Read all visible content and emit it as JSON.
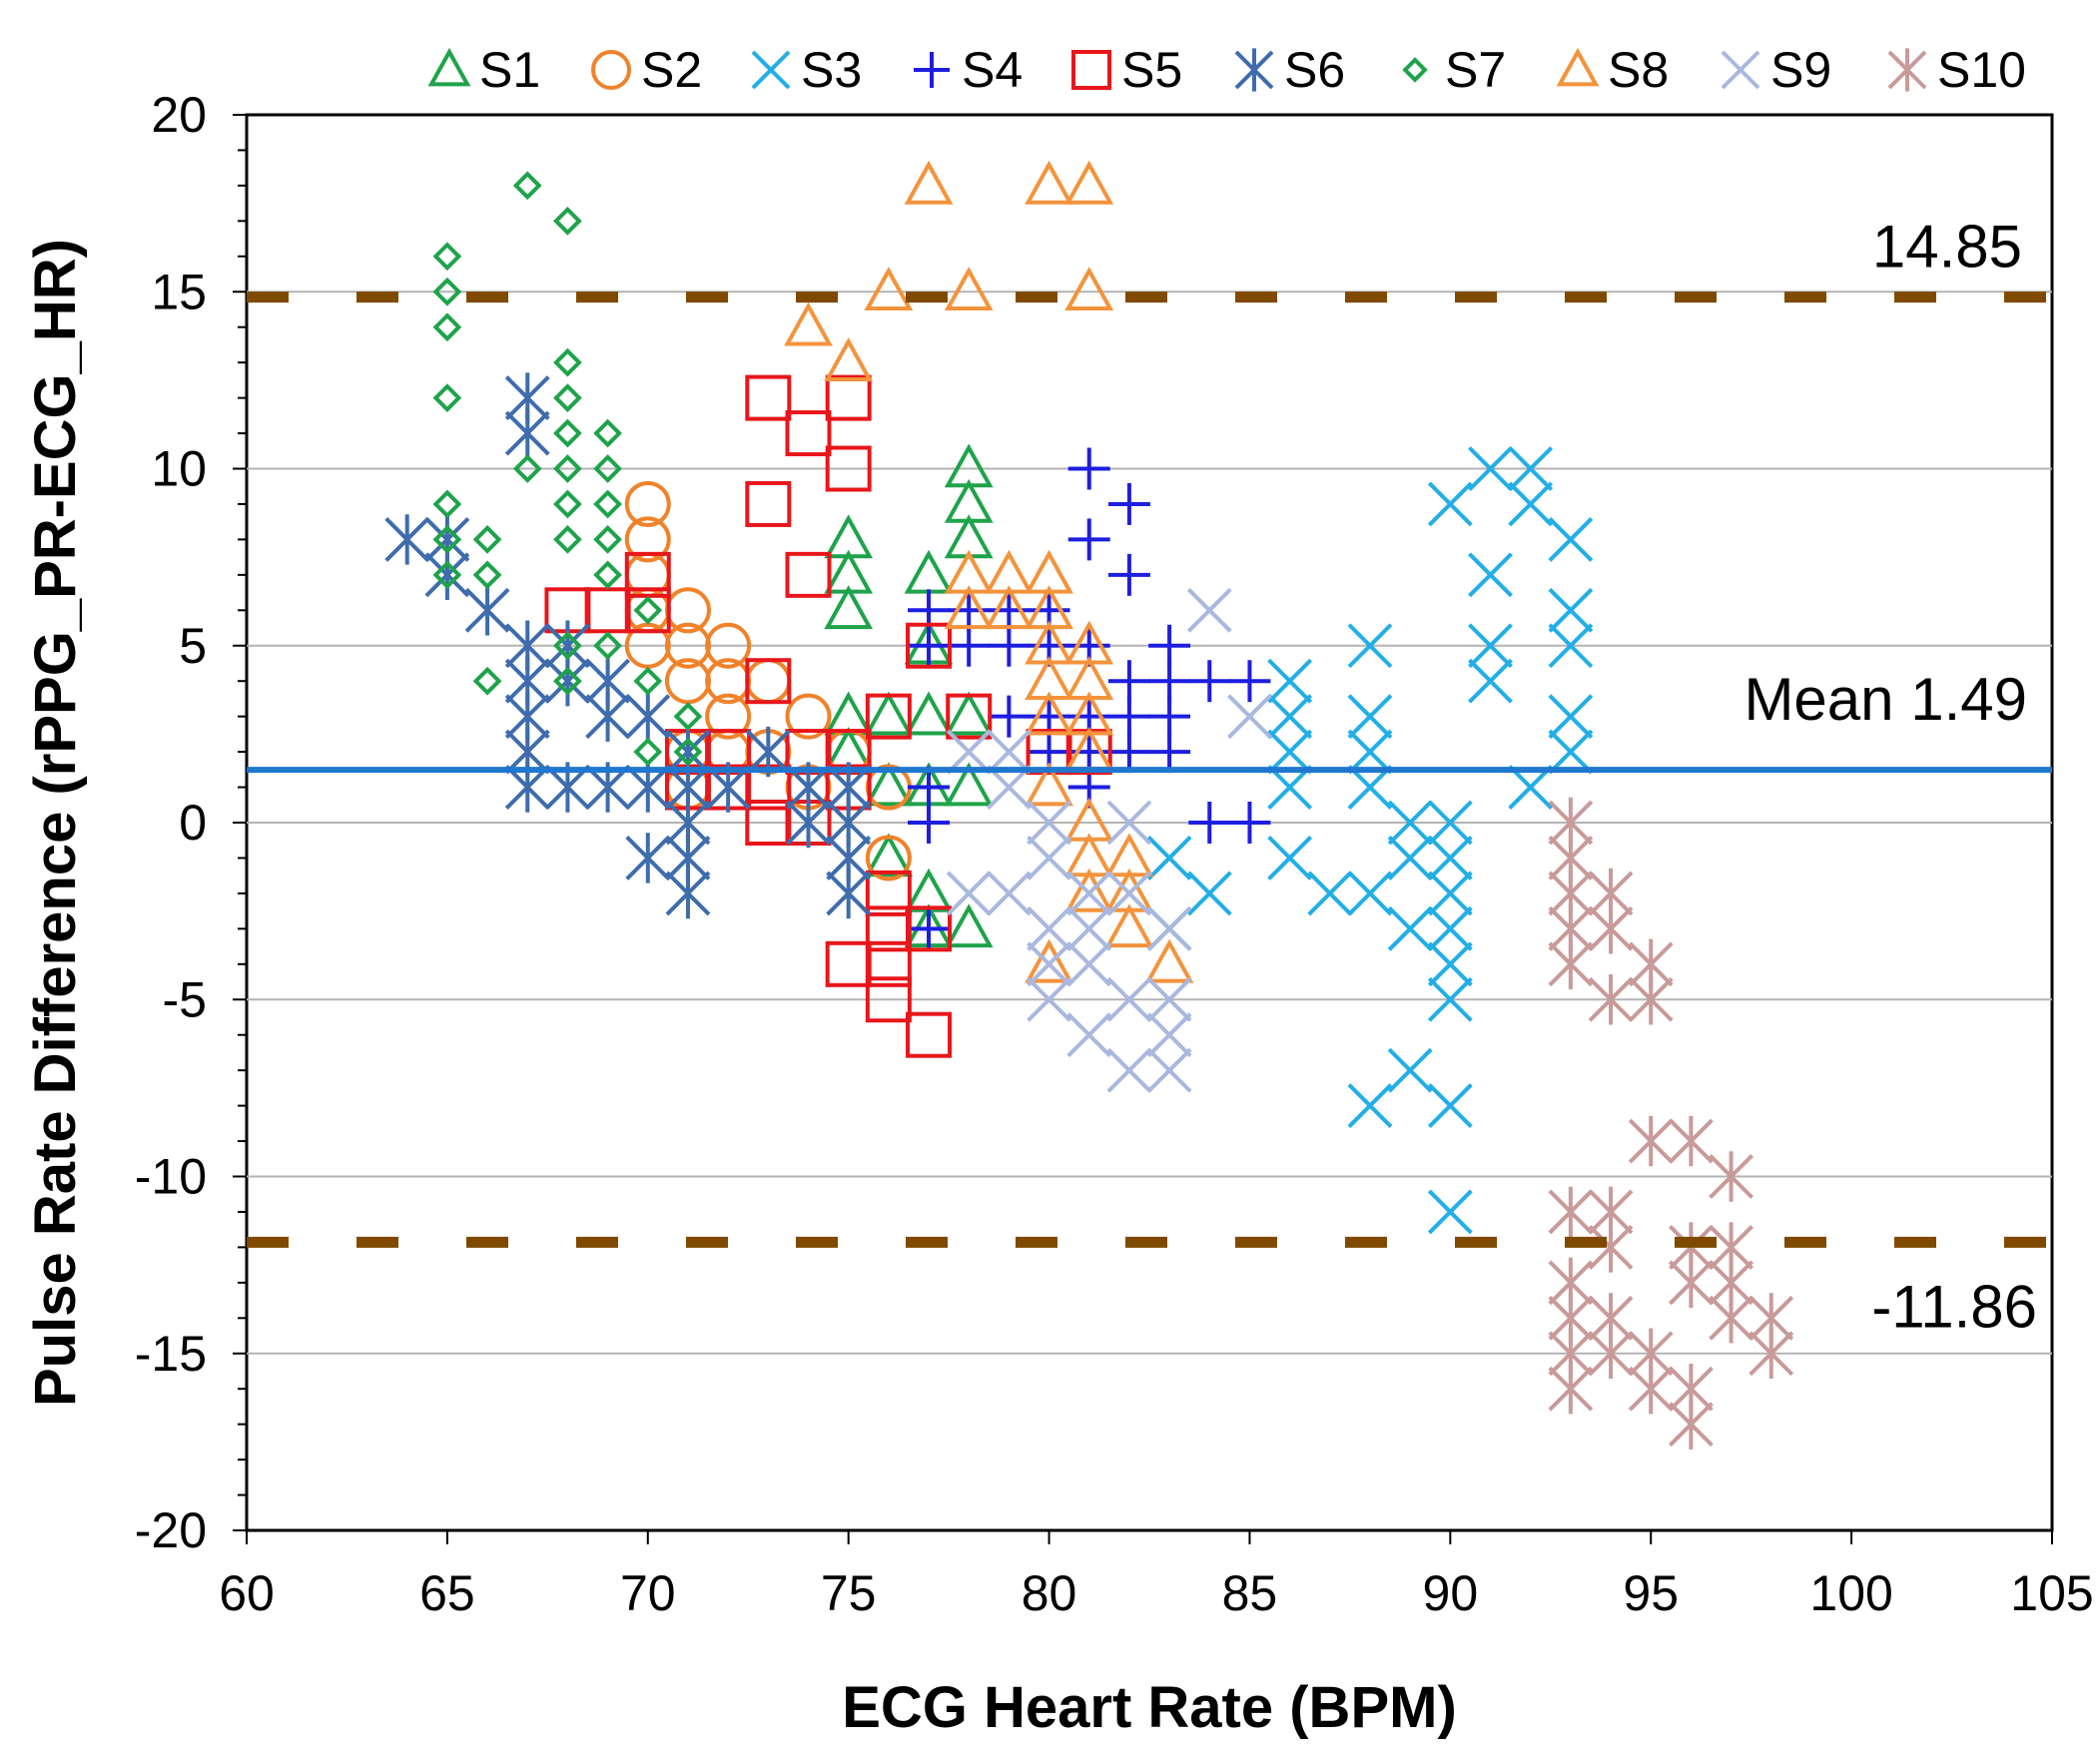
{
  "chart_data": {
    "type": "scatter",
    "title": "",
    "xlabel": "ECG Heart Rate (BPM)",
    "ylabel": "Pulse Rate Difference (rPPG_PR-ECG_HR)",
    "xlim": [
      60,
      105
    ],
    "ylim": [
      -20,
      20
    ],
    "xticks": [
      "60",
      "65",
      "70",
      "75",
      "80",
      "85",
      "90",
      "95",
      "100",
      "105"
    ],
    "yticks": [
      "20",
      "15",
      "10",
      "5",
      "0",
      "-5",
      "-10",
      "-15",
      "-20"
    ],
    "grid": true,
    "legend_position": "top",
    "reference_lines": [
      {
        "name": "upper-limit",
        "value": 14.85,
        "label": "14.85",
        "style": "dashed",
        "color": "#7f4a00"
      },
      {
        "name": "mean",
        "value": 1.49,
        "label": "Mean 1.49",
        "style": "solid",
        "color": "#1f77d0"
      },
      {
        "name": "lower-limit",
        "value": -11.86,
        "label": "-11.86",
        "style": "dashed",
        "color": "#7f4a00"
      }
    ],
    "series": [
      {
        "name": "S1",
        "marker": "triangle",
        "color": "#1ea34a",
        "points": [
          [
            75,
            8
          ],
          [
            75,
            7
          ],
          [
            75,
            6
          ],
          [
            75,
            3
          ],
          [
            75,
            2
          ],
          [
            76,
            3
          ],
          [
            76,
            1
          ],
          [
            76,
            -1
          ],
          [
            77,
            7
          ],
          [
            77,
            5
          ],
          [
            77,
            3
          ],
          [
            77,
            1
          ],
          [
            77,
            -2
          ],
          [
            78,
            10
          ],
          [
            78,
            9
          ],
          [
            78,
            8
          ],
          [
            78,
            3
          ],
          [
            78,
            1
          ],
          [
            78,
            -3
          ],
          [
            77,
            -3
          ]
        ]
      },
      {
        "name": "S2",
        "marker": "circle",
        "color": "#f0822a",
        "points": [
          [
            70,
            9
          ],
          [
            70,
            8
          ],
          [
            70,
            7
          ],
          [
            70,
            6
          ],
          [
            70,
            5
          ],
          [
            71,
            6
          ],
          [
            71,
            5
          ],
          [
            71,
            4
          ],
          [
            71,
            2
          ],
          [
            71,
            1
          ],
          [
            72,
            5
          ],
          [
            72,
            4
          ],
          [
            72,
            3
          ],
          [
            72,
            2
          ],
          [
            73,
            4
          ],
          [
            73,
            2
          ],
          [
            74,
            3
          ],
          [
            74,
            1
          ],
          [
            75,
            2
          ],
          [
            76,
            1
          ],
          [
            76,
            -1
          ]
        ]
      },
      {
        "name": "S3",
        "marker": "x",
        "color": "#22aee6",
        "points": [
          [
            83,
            -1
          ],
          [
            83,
            -3
          ],
          [
            84,
            -2
          ],
          [
            86,
            4
          ],
          [
            86,
            3
          ],
          [
            86,
            2
          ],
          [
            86,
            1
          ],
          [
            86,
            -1
          ],
          [
            87,
            -2
          ],
          [
            88,
            5
          ],
          [
            88,
            3
          ],
          [
            88,
            2
          ],
          [
            88,
            1
          ],
          [
            88,
            -2
          ],
          [
            88,
            -8
          ],
          [
            89,
            0
          ],
          [
            89,
            -1
          ],
          [
            89,
            -3
          ],
          [
            89,
            -7
          ],
          [
            90,
            9
          ],
          [
            90,
            0
          ],
          [
            90,
            -1
          ],
          [
            90,
            -2
          ],
          [
            90,
            -3
          ],
          [
            90,
            -4
          ],
          [
            90,
            -5
          ],
          [
            90,
            -8
          ],
          [
            90,
            -11
          ],
          [
            91,
            10
          ],
          [
            91,
            7
          ],
          [
            91,
            5
          ],
          [
            91,
            4
          ],
          [
            92,
            10
          ],
          [
            92,
            9
          ],
          [
            92,
            1
          ],
          [
            93,
            8
          ],
          [
            93,
            6
          ],
          [
            93,
            5
          ],
          [
            93,
            3
          ],
          [
            93,
            2
          ]
        ]
      },
      {
        "name": "S4",
        "marker": "plus",
        "color": "#1e1ee0",
        "points": [
          [
            77,
            6
          ],
          [
            77,
            5
          ],
          [
            77,
            1
          ],
          [
            77,
            0
          ],
          [
            77,
            -3
          ],
          [
            78,
            6
          ],
          [
            78,
            5
          ],
          [
            79,
            6
          ],
          [
            79,
            5
          ],
          [
            79,
            3
          ],
          [
            80,
            6
          ],
          [
            80,
            5
          ],
          [
            80,
            3
          ],
          [
            80,
            2
          ],
          [
            81,
            10
          ],
          [
            81,
            8
          ],
          [
            81,
            5
          ],
          [
            81,
            3
          ],
          [
            81,
            2
          ],
          [
            81,
            1
          ],
          [
            82,
            9
          ],
          [
            82,
            7
          ],
          [
            82,
            4
          ],
          [
            82,
            3
          ],
          [
            82,
            2
          ],
          [
            83,
            5
          ],
          [
            83,
            4
          ],
          [
            83,
            3
          ],
          [
            83,
            2
          ],
          [
            84,
            4
          ],
          [
            84,
            0
          ],
          [
            85,
            4
          ],
          [
            85,
            0
          ]
        ]
      },
      {
        "name": "S5",
        "marker": "square",
        "color": "#e8161b",
        "points": [
          [
            68,
            6
          ],
          [
            69,
            6
          ],
          [
            70,
            7
          ],
          [
            70,
            6
          ],
          [
            71,
            2
          ],
          [
            71,
            1
          ],
          [
            72,
            2
          ],
          [
            72,
            1
          ],
          [
            73,
            12
          ],
          [
            73,
            9
          ],
          [
            73,
            4
          ],
          [
            73,
            1
          ],
          [
            73,
            0
          ],
          [
            74,
            11
          ],
          [
            74,
            7
          ],
          [
            74,
            2
          ],
          [
            74,
            0
          ],
          [
            75,
            12
          ],
          [
            75,
            10
          ],
          [
            75,
            2
          ],
          [
            75,
            1
          ],
          [
            75,
            -4
          ],
          [
            76,
            3
          ],
          [
            76,
            -2
          ],
          [
            76,
            -3
          ],
          [
            76,
            -4
          ],
          [
            76,
            -5
          ],
          [
            77,
            5
          ],
          [
            77,
            -3
          ],
          [
            77,
            -6
          ],
          [
            78,
            3
          ],
          [
            80,
            2
          ],
          [
            81,
            2
          ]
        ]
      },
      {
        "name": "S6",
        "marker": "asterisk",
        "color": "#3e6cad",
        "points": [
          [
            64,
            8
          ],
          [
            65,
            8
          ],
          [
            65,
            7
          ],
          [
            66,
            6
          ],
          [
            67,
            12
          ],
          [
            67,
            11
          ],
          [
            67,
            5
          ],
          [
            67,
            4
          ],
          [
            67,
            3
          ],
          [
            67,
            2
          ],
          [
            67,
            1
          ],
          [
            68,
            5
          ],
          [
            68,
            4
          ],
          [
            68,
            1
          ],
          [
            69,
            4
          ],
          [
            69,
            3
          ],
          [
            69,
            1
          ],
          [
            70,
            3
          ],
          [
            70,
            1
          ],
          [
            70,
            -1
          ],
          [
            71,
            2
          ],
          [
            71,
            1
          ],
          [
            71,
            0
          ],
          [
            71,
            -1
          ],
          [
            71,
            -2
          ],
          [
            72,
            1
          ],
          [
            73,
            2
          ],
          [
            74,
            1
          ],
          [
            74,
            0
          ],
          [
            75,
            1
          ],
          [
            75,
            0
          ],
          [
            75,
            -1
          ],
          [
            75,
            -2
          ]
        ]
      },
      {
        "name": "S7",
        "marker": "diamond",
        "color": "#1ea34a",
        "points": [
          [
            65,
            16
          ],
          [
            65,
            15
          ],
          [
            65,
            14
          ],
          [
            65,
            12
          ],
          [
            65,
            9
          ],
          [
            65,
            8
          ],
          [
            65,
            7
          ],
          [
            66,
            8
          ],
          [
            66,
            7
          ],
          [
            66,
            4
          ],
          [
            67,
            18
          ],
          [
            67,
            10
          ],
          [
            68,
            17
          ],
          [
            68,
            13
          ],
          [
            68,
            12
          ],
          [
            68,
            11
          ],
          [
            68,
            10
          ],
          [
            68,
            9
          ],
          [
            68,
            8
          ],
          [
            68,
            5
          ],
          [
            68,
            4
          ],
          [
            69,
            11
          ],
          [
            69,
            10
          ],
          [
            69,
            9
          ],
          [
            69,
            8
          ],
          [
            69,
            7
          ],
          [
            69,
            5
          ],
          [
            70,
            6
          ],
          [
            70,
            4
          ],
          [
            70,
            2
          ],
          [
            71,
            3
          ],
          [
            71,
            2
          ]
        ]
      },
      {
        "name": "S8",
        "marker": "triangle",
        "color": "#f4933c",
        "points": [
          [
            74,
            14
          ],
          [
            75,
            13
          ],
          [
            76,
            15
          ],
          [
            77,
            18
          ],
          [
            78,
            15
          ],
          [
            78,
            7
          ],
          [
            78,
            6
          ],
          [
            79,
            7
          ],
          [
            79,
            6
          ],
          [
            80,
            18
          ],
          [
            80,
            7
          ],
          [
            80,
            6
          ],
          [
            80,
            5
          ],
          [
            80,
            4
          ],
          [
            80,
            3
          ],
          [
            80,
            1
          ],
          [
            80,
            -4
          ],
          [
            81,
            18
          ],
          [
            81,
            15
          ],
          [
            81,
            5
          ],
          [
            81,
            4
          ],
          [
            81,
            3
          ],
          [
            81,
            2
          ],
          [
            81,
            0
          ],
          [
            81,
            -1
          ],
          [
            81,
            -2
          ],
          [
            82,
            -1
          ],
          [
            82,
            -2
          ],
          [
            82,
            -3
          ],
          [
            83,
            -4
          ]
        ]
      },
      {
        "name": "S9",
        "marker": "x",
        "color": "#a9b8de",
        "points": [
          [
            78,
            2
          ],
          [
            78,
            -2
          ],
          [
            79,
            2
          ],
          [
            79,
            1
          ],
          [
            79,
            -2
          ],
          [
            80,
            0
          ],
          [
            80,
            -1
          ],
          [
            80,
            -3
          ],
          [
            80,
            -4
          ],
          [
            80,
            -5
          ],
          [
            81,
            -2
          ],
          [
            81,
            -3
          ],
          [
            81,
            -4
          ],
          [
            81,
            -6
          ],
          [
            82,
            0
          ],
          [
            82,
            -2
          ],
          [
            82,
            -5
          ],
          [
            82,
            -7
          ],
          [
            83,
            -3
          ],
          [
            83,
            -5
          ],
          [
            83,
            -6
          ],
          [
            83,
            -7
          ],
          [
            84,
            6
          ],
          [
            85,
            3
          ]
        ]
      },
      {
        "name": "S10",
        "marker": "asterisk",
        "color": "#c99a9a",
        "points": [
          [
            93,
            0
          ],
          [
            93,
            -1
          ],
          [
            93,
            -2
          ],
          [
            93,
            -3
          ],
          [
            93,
            -4
          ],
          [
            93,
            -11
          ],
          [
            93,
            -13
          ],
          [
            93,
            -14
          ],
          [
            93,
            -15
          ],
          [
            93,
            -16
          ],
          [
            94,
            -2
          ],
          [
            94,
            -3
          ],
          [
            94,
            -5
          ],
          [
            94,
            -11
          ],
          [
            94,
            -12
          ],
          [
            94,
            -14
          ],
          [
            94,
            -15
          ],
          [
            95,
            -4
          ],
          [
            95,
            -5
          ],
          [
            95,
            -9
          ],
          [
            95,
            -15
          ],
          [
            95,
            -16
          ],
          [
            96,
            -9
          ],
          [
            96,
            -12
          ],
          [
            96,
            -13
          ],
          [
            96,
            -16
          ],
          [
            96,
            -17
          ],
          [
            97,
            -10
          ],
          [
            97,
            -12
          ],
          [
            97,
            -13
          ],
          [
            97,
            -14
          ],
          [
            98,
            -14
          ],
          [
            98,
            -15
          ]
        ]
      }
    ]
  }
}
